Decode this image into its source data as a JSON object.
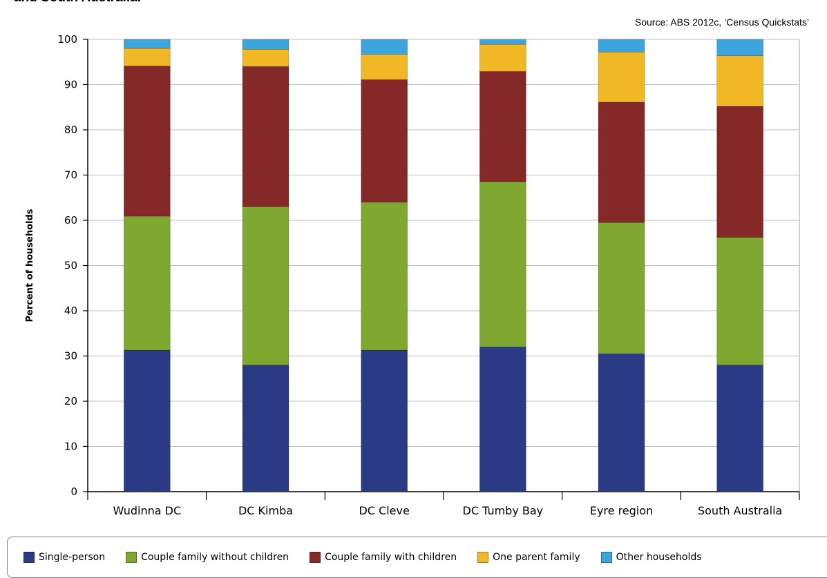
{
  "header": {
    "title_fragment": "and South Australia.",
    "source": "Source: ABS 2012c, ‘Census Quickstats’"
  },
  "chart_data": {
    "type": "bar",
    "stacked": true,
    "title": "",
    "xlabel": "",
    "ylabel": "Percent of households",
    "ylim": [
      0,
      100
    ],
    "yticks": [
      0,
      10,
      20,
      30,
      40,
      50,
      60,
      70,
      80,
      90,
      100
    ],
    "grid": true,
    "legend_position": "bottom",
    "categories": [
      "Wudinna DC",
      "DC Kimba",
      "DC Cleve",
      "DC Tumby Bay",
      "Eyre region",
      "South Australia"
    ],
    "series": [
      {
        "name": "Single-person",
        "color": "#2a3a85",
        "values": [
          31.3,
          28.0,
          31.3,
          32.0,
          30.5,
          28.0
        ]
      },
      {
        "name": "Couple family without children",
        "color": "#7fa830",
        "values": [
          29.6,
          35.0,
          32.7,
          36.5,
          29.0,
          28.2
        ]
      },
      {
        "name": "Couple family with children",
        "color": "#842828",
        "values": [
          33.2,
          31.0,
          27.1,
          24.4,
          26.6,
          29.0
        ]
      },
      {
        "name": "One parent family",
        "color": "#f0b825",
        "values": [
          3.9,
          3.8,
          5.6,
          6.0,
          11.1,
          11.2
        ]
      },
      {
        "name": "Other households",
        "color": "#3ca5de",
        "values": [
          2.0,
          2.2,
          3.3,
          1.1,
          2.8,
          3.6
        ]
      }
    ]
  }
}
